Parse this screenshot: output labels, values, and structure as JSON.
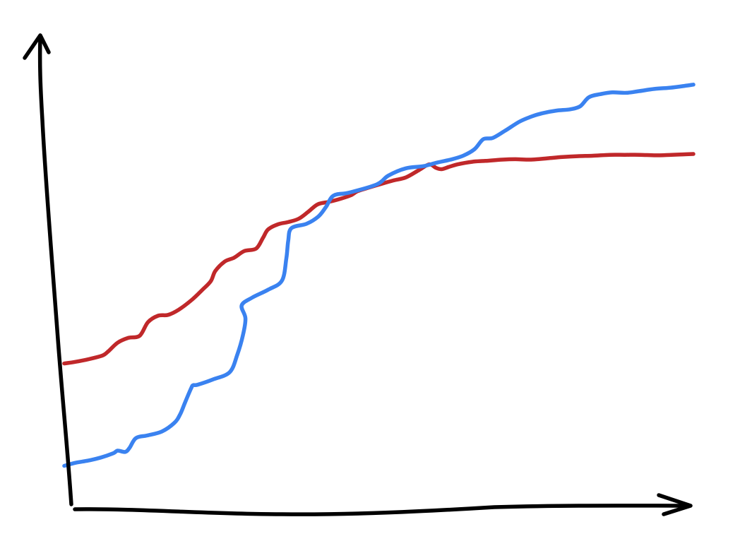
{
  "chart_data": {
    "type": "line",
    "style": "hand-drawn sketch",
    "title": "",
    "xlabel": "",
    "ylabel": "",
    "axis_ticks": false,
    "grid": false,
    "legend": false,
    "xlim": [
      0,
      100
    ],
    "ylim": [
      0,
      100
    ],
    "axis_color": "#000000",
    "series": [
      {
        "color": "#c0282a",
        "x": [
          0,
          1.5,
          3.3,
          4.8,
          6.2,
          7,
          8.5,
          10.2,
          12,
          13.3,
          14.9,
          16.5,
          18.2,
          20.3,
          21.9,
          23.3,
          24,
          25.5,
          27,
          28.6,
          30.5,
          31.6,
          32.4,
          34,
          35.6,
          37.3,
          38.8,
          40.3,
          42.2,
          44.2,
          45.6,
          46.6,
          48.3,
          50.4,
          52.3,
          54.3,
          56.4,
          58,
          59.1,
          60,
          61.1,
          62.5,
          64.8,
          66.9,
          69.6,
          71.7,
          74.2,
          76.8,
          79.2,
          81.6,
          84,
          86.7,
          89.1,
          91.5,
          94,
          96.5,
          98.3,
          100
        ],
        "y": [
          30.2,
          30.5,
          31,
          31.5,
          32.1,
          33,
          35,
          36.1,
          36.6,
          39.7,
          41.2,
          41.4,
          42.6,
          44.9,
          47.1,
          49.2,
          51.5,
          53.7,
          54.6,
          56.1,
          56.7,
          59.2,
          61.1,
          62.3,
          62.8,
          63.6,
          65.2,
          66.9,
          67.5,
          68.3,
          69,
          69.9,
          70.7,
          71.6,
          72.4,
          73.1,
          74.8,
          76.1,
          75.3,
          75,
          75.5,
          76.1,
          76.7,
          76.9,
          77.2,
          77.3,
          77.2,
          77.5,
          77.8,
          78,
          78.1,
          78.3,
          78.3,
          78.3,
          78.2,
          78.3,
          78.4,
          78.5
        ]
      },
      {
        "color": "#3a82f0",
        "x": [
          0,
          1.8,
          3.8,
          5.8,
          7.8,
          8.5,
          9.7,
          10.4,
          11.4,
          13.2,
          15.5,
          17.5,
          18.4,
          19.2,
          20.2,
          20.5,
          21.2,
          23.6,
          26.3,
          27.5,
          28.4,
          28.8,
          28.2,
          29.9,
          32.4,
          34.6,
          35.3,
          35.6,
          36.1,
          38.5,
          40.4,
          41.6,
          42.8,
          45.3,
          49.7,
          51.5,
          54.3,
          57.1,
          59.2,
          61.4,
          63.4,
          65.2,
          66.6,
          68.1,
          70.1,
          72.4,
          74.2,
          76,
          78.2,
          80.4,
          82,
          83.4,
          85.2,
          87.1,
          89.4,
          91.4,
          93.8,
          96.4,
          98.6,
          100
        ],
        "y": [
          6.6,
          7.3,
          7.8,
          8.5,
          9.5,
          10.1,
          9.8,
          10.8,
          13,
          13.6,
          14.5,
          16.5,
          18.4,
          21.2,
          24.6,
          25.2,
          25.3,
          26.5,
          28.2,
          32.2,
          36.7,
          40.6,
          43.6,
          45.4,
          47.2,
          49.3,
          54.4,
          58.5,
          61.4,
          62.4,
          64.1,
          66.3,
          68.9,
          69.6,
          71.5,
          73.5,
          75.2,
          75.7,
          76.5,
          77.2,
          78.1,
          79.6,
          81.9,
          82.2,
          83.9,
          86,
          87.1,
          87.9,
          88.5,
          88.8,
          89.5,
          91.6,
          92.3,
          92.7,
          92.6,
          93,
          93.5,
          93.8,
          94.2,
          94.5
        ]
      }
    ]
  }
}
